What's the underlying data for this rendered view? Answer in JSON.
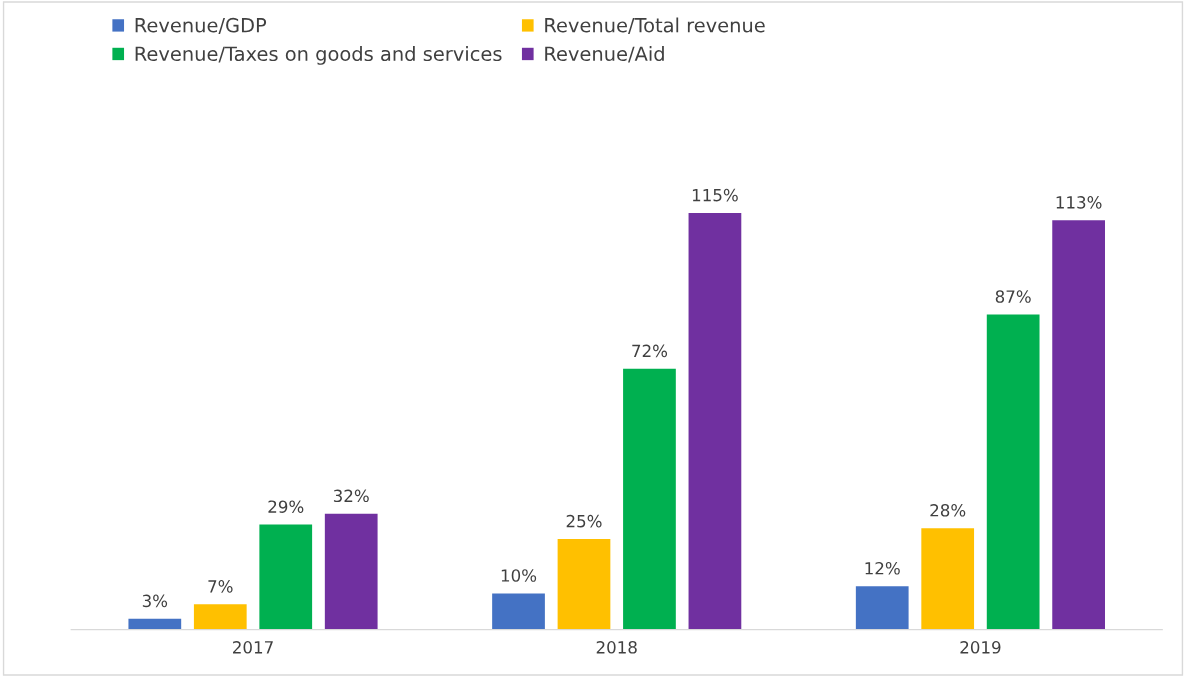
{
  "chart_data": {
    "type": "bar",
    "categories": [
      "2017",
      "2018",
      "2019"
    ],
    "series": [
      {
        "name": "Revenue/GDP",
        "color": "#4472c4",
        "values": [
          3,
          10,
          12
        ],
        "value_labels": [
          "3%",
          "10%",
          "12%"
        ]
      },
      {
        "name": "Revenue/Total revenue",
        "color": "#ffc000",
        "values": [
          7,
          25,
          28
        ],
        "value_labels": [
          "7%",
          "25%",
          "28%"
        ]
      },
      {
        "name": "Revenue/Taxes on goods and services",
        "color": "#00b050",
        "values": [
          29,
          72,
          87
        ],
        "value_labels": [
          "29%",
          "72%",
          "87%"
        ]
      },
      {
        "name": "Revenue/Aid",
        "color": "#7030a0",
        "values": [
          32,
          115,
          113
        ],
        "value_labels": [
          "32%",
          "115%",
          "113%"
        ]
      }
    ],
    "legend": "top"
  }
}
